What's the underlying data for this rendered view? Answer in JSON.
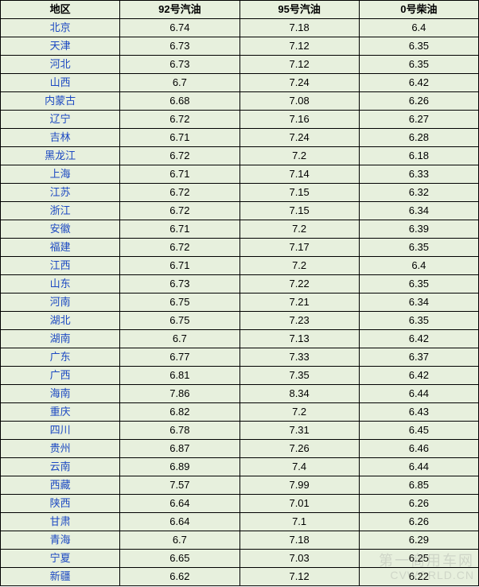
{
  "table": {
    "columns": [
      "地区",
      "92号汽油",
      "95号汽油",
      "0号柴油"
    ],
    "column_widths_pct": [
      25,
      25,
      25,
      25
    ],
    "header_bg": "#e7f0dd",
    "header_color": "#000000",
    "header_fontweight": "bold",
    "row_bg": "#e7f0dd",
    "border_color": "#000000",
    "region_color": "#1c49c2",
    "value_color": "#000000",
    "fontsize": 13,
    "rows": [
      [
        "北京",
        "6.74",
        "7.18",
        "6.4"
      ],
      [
        "天津",
        "6.73",
        "7.12",
        "6.35"
      ],
      [
        "河北",
        "6.73",
        "7.12",
        "6.35"
      ],
      [
        "山西",
        "6.7",
        "7.24",
        "6.42"
      ],
      [
        "内蒙古",
        "6.68",
        "7.08",
        "6.26"
      ],
      [
        "辽宁",
        "6.72",
        "7.16",
        "6.27"
      ],
      [
        "吉林",
        "6.71",
        "7.24",
        "6.28"
      ],
      [
        "黑龙江",
        "6.72",
        "7.2",
        "6.18"
      ],
      [
        "上海",
        "6.71",
        "7.14",
        "6.33"
      ],
      [
        "江苏",
        "6.72",
        "7.15",
        "6.32"
      ],
      [
        "浙江",
        "6.72",
        "7.15",
        "6.34"
      ],
      [
        "安徽",
        "6.71",
        "7.2",
        "6.39"
      ],
      [
        "福建",
        "6.72",
        "7.17",
        "6.35"
      ],
      [
        "江西",
        "6.71",
        "7.2",
        "6.4"
      ],
      [
        "山东",
        "6.73",
        "7.22",
        "6.35"
      ],
      [
        "河南",
        "6.75",
        "7.21",
        "6.34"
      ],
      [
        "湖北",
        "6.75",
        "7.23",
        "6.35"
      ],
      [
        "湖南",
        "6.7",
        "7.13",
        "6.42"
      ],
      [
        "广东",
        "6.77",
        "7.33",
        "6.37"
      ],
      [
        "广西",
        "6.81",
        "7.35",
        "6.42"
      ],
      [
        "海南",
        "7.86",
        "8.34",
        "6.44"
      ],
      [
        "重庆",
        "6.82",
        "7.2",
        "6.43"
      ],
      [
        "四川",
        "6.78",
        "7.31",
        "6.45"
      ],
      [
        "贵州",
        "6.87",
        "7.26",
        "6.46"
      ],
      [
        "云南",
        "6.89",
        "7.4",
        "6.44"
      ],
      [
        "西藏",
        "7.57",
        "7.99",
        "6.85"
      ],
      [
        "陕西",
        "6.64",
        "7.01",
        "6.26"
      ],
      [
        "甘肃",
        "6.64",
        "7.1",
        "6.26"
      ],
      [
        "青海",
        "6.7",
        "7.18",
        "6.29"
      ],
      [
        "宁夏",
        "6.65",
        "7.03",
        "6.25"
      ],
      [
        "新疆",
        "6.62",
        "7.12",
        "6.22"
      ]
    ]
  },
  "watermark": {
    "line1": "第一商用车网",
    "line2": "CVWORLD.CN",
    "color": "#888888",
    "opacity": 0.25
  }
}
